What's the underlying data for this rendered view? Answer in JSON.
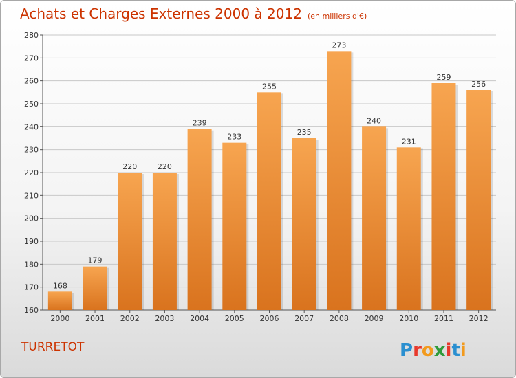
{
  "header": {
    "title": "Achats et Charges Externes 2000 à 2012",
    "subtitle": "(en milliers d'€)"
  },
  "footer": {
    "commune": "TURRETOT",
    "logo_text": "Proxiti"
  },
  "colors": {
    "title": "#cc3300",
    "bar_top": "#f7a550",
    "bar_bottom": "#d9731e",
    "grid": "#c8c8c8"
  },
  "chart_data": {
    "type": "bar",
    "categories": [
      "2000",
      "2001",
      "2002",
      "2003",
      "2004",
      "2005",
      "2006",
      "2007",
      "2008",
      "2009",
      "2010",
      "2011",
      "2012"
    ],
    "values": [
      168,
      179,
      220,
      220,
      239,
      233,
      255,
      235,
      273,
      240,
      231,
      259,
      256
    ],
    "data_labels": [
      "168",
      "179",
      "220",
      "220",
      "239",
      "233",
      "255",
      "235",
      "273",
      "240",
      "231",
      "259",
      "256"
    ],
    "ylim": [
      160,
      280
    ],
    "yticks": [
      160,
      170,
      180,
      190,
      200,
      210,
      220,
      230,
      240,
      250,
      260,
      270,
      280
    ],
    "grid": true,
    "legend": "none"
  }
}
